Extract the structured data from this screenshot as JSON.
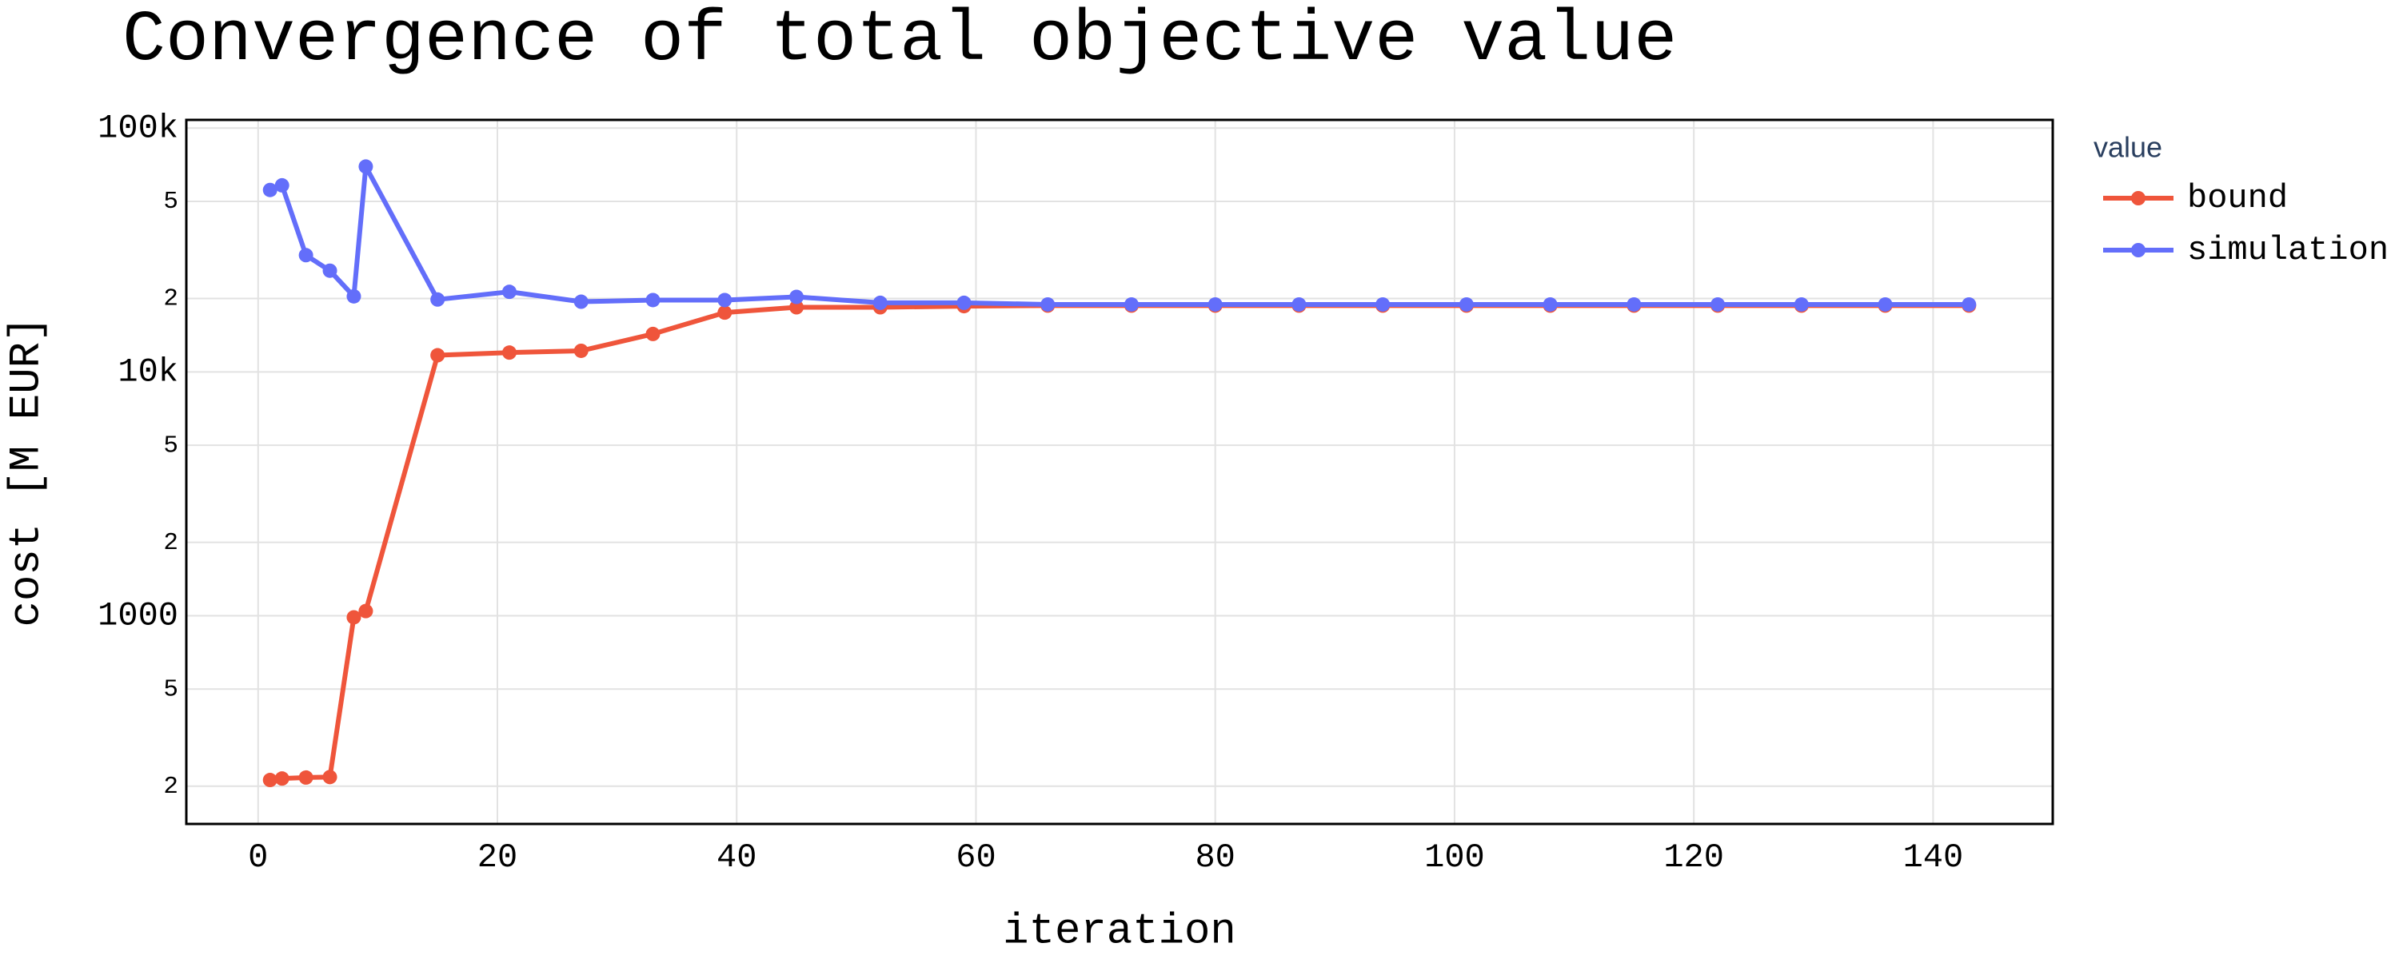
{
  "chart_data": {
    "type": "line",
    "title": "Convergence of total objective value",
    "x_label": "iteration",
    "y_label": "cost [M EUR]",
    "legend_title": "value",
    "y_scale": "log",
    "grid": true,
    "legend_position": "right",
    "xlim": [
      -6,
      150
    ],
    "xticks": [
      0,
      20,
      40,
      60,
      80,
      100,
      120,
      140
    ],
    "ylim": [
      140,
      108000
    ],
    "yticks": [
      {
        "value": 200,
        "label": "2"
      },
      {
        "value": 500,
        "label": "5"
      },
      1000,
      {
        "value": 2000,
        "label": "2"
      },
      {
        "value": 5000,
        "label": "5"
      },
      {
        "value": 10000,
        "label": "10k"
      },
      {
        "value": 20000,
        "label": "2"
      },
      {
        "value": 50000,
        "label": "5"
      },
      {
        "value": 100000,
        "label": "100k"
      }
    ],
    "x": [
      1,
      2,
      4,
      6,
      8,
      9,
      15,
      21,
      27,
      33,
      39,
      45,
      52,
      59,
      66,
      73,
      80,
      87,
      94,
      101,
      108,
      115,
      122,
      129,
      136,
      143
    ],
    "series": [
      {
        "name": "bound",
        "color": "#EF553B",
        "values": [
          212,
          215,
          217,
          218,
          985,
          1045,
          11700,
          12000,
          12200,
          14300,
          17500,
          18400,
          18400,
          18600,
          18700,
          18700,
          18700,
          18700,
          18700,
          18700,
          18700,
          18700,
          18700,
          18700,
          18700,
          18700
        ]
      },
      {
        "name": "simulation",
        "color": "#636EFA",
        "values": [
          55700,
          58200,
          30100,
          26000,
          20400,
          69500,
          19800,
          21300,
          19400,
          19700,
          19700,
          20300,
          19200,
          19200,
          18900,
          18900,
          18900,
          18900,
          18900,
          18900,
          18900,
          18900,
          18900,
          18900,
          18900,
          18900
        ]
      }
    ]
  }
}
